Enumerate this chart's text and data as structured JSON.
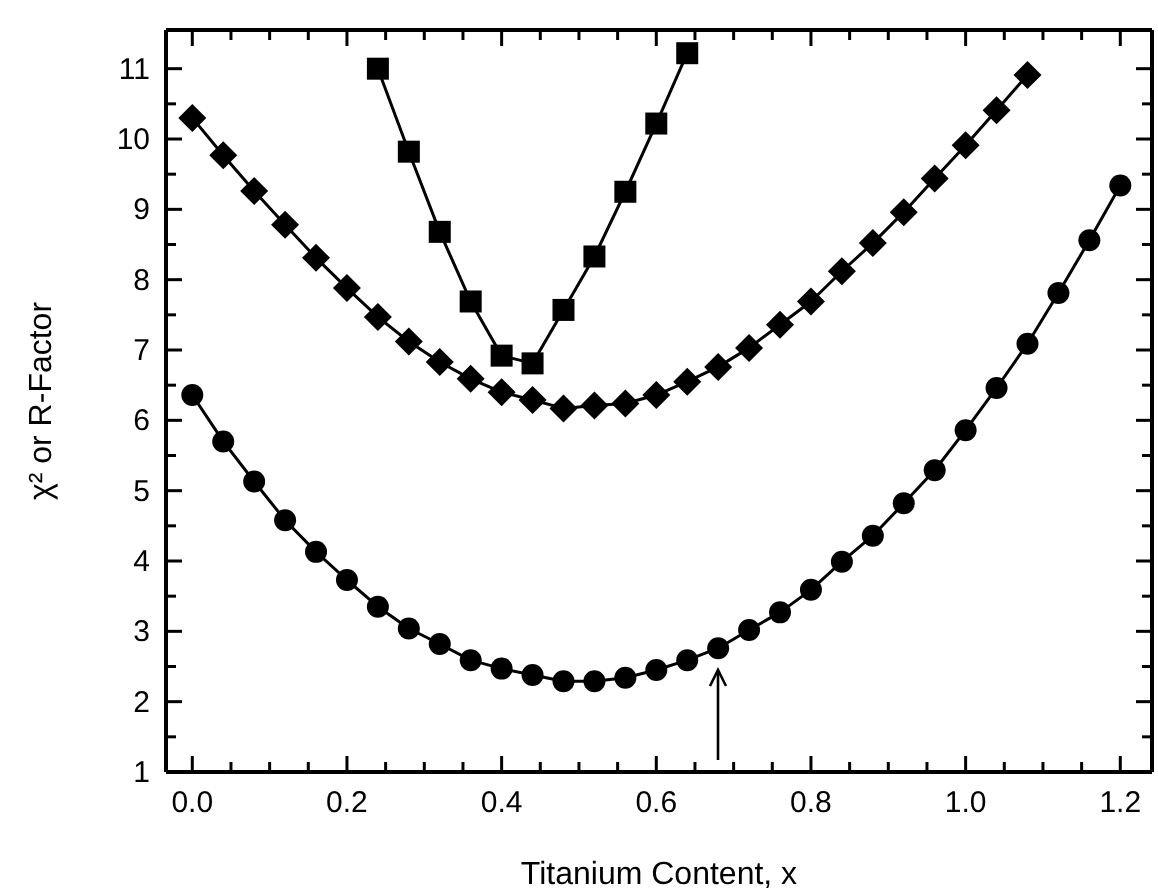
{
  "chart_data": {
    "type": "line",
    "xlabel": "Titanium Content, x",
    "ylabel": "χ² or R-Factor",
    "xlim": [
      -0.034,
      1.241
    ],
    "ylim": [
      1,
      11.55
    ],
    "xticks": [
      {
        "value": 0,
        "label": "0.0"
      },
      {
        "value": 0.05,
        "label": null
      },
      {
        "value": 0.1,
        "label": null
      },
      {
        "value": 0.15,
        "label": null
      },
      {
        "value": 0.2,
        "label": "0.2"
      },
      {
        "value": 0.25,
        "label": null
      },
      {
        "value": 0.3,
        "label": null
      },
      {
        "value": 0.35,
        "label": null
      },
      {
        "value": 0.4,
        "label": "0.4"
      },
      {
        "value": 0.45,
        "label": null
      },
      {
        "value": 0.5,
        "label": null
      },
      {
        "value": 0.55,
        "label": null
      },
      {
        "value": 0.6,
        "label": "0.6"
      },
      {
        "value": 0.65,
        "label": null
      },
      {
        "value": 0.7,
        "label": null
      },
      {
        "value": 0.75,
        "label": null
      },
      {
        "value": 0.8,
        "label": "0.8"
      },
      {
        "value": 0.85,
        "label": null
      },
      {
        "value": 0.9,
        "label": null
      },
      {
        "value": 0.95,
        "label": null
      },
      {
        "value": 1.0,
        "label": "1.0"
      },
      {
        "value": 1.05,
        "label": null
      },
      {
        "value": 1.1,
        "label": null
      },
      {
        "value": 1.15,
        "label": null
      },
      {
        "value": 1.2,
        "label": "1.2"
      }
    ],
    "yticks": [
      1,
      {
        "value": 1.5,
        "label": null
      },
      2,
      {
        "value": 2.5,
        "label": null
      },
      3,
      {
        "value": 3.5,
        "label": null
      },
      4,
      {
        "value": 4.5,
        "label": null
      },
      5,
      {
        "value": 5.5,
        "label": null
      },
      6,
      {
        "value": 6.5,
        "label": null
      },
      7,
      {
        "value": 7.5,
        "label": null
      },
      8,
      {
        "value": 8.5,
        "label": null
      },
      9,
      {
        "value": 9.5,
        "label": null
      },
      10,
      {
        "value": 10.5,
        "label": null
      },
      11
    ],
    "line_style": "solid",
    "series": [
      {
        "color": "#000000",
        "marker": "square",
        "x": [
          0.24,
          0.28,
          0.32,
          0.36,
          0.4,
          0.44,
          0.48,
          0.52,
          0.56,
          0.6,
          0.64
        ],
        "values": [
          11.0,
          9.82,
          8.68,
          7.69,
          6.92,
          6.81,
          7.57,
          8.33,
          9.25,
          10.22,
          11.22
        ]
      },
      {
        "color": "#000000",
        "marker": "diamond",
        "x": [
          0,
          0.04,
          0.08,
          0.12,
          0.16,
          0.2,
          0.24,
          0.28,
          0.32,
          0.36,
          0.4,
          0.44,
          0.48,
          0.52,
          0.56,
          0.6,
          0.64,
          0.68,
          0.72,
          0.76,
          0.8,
          0.84,
          0.88,
          0.92,
          0.96,
          1.0,
          1.04,
          1.08
        ],
        "values": [
          10.3,
          9.77,
          9.26,
          8.78,
          8.31,
          7.88,
          7.47,
          7.12,
          6.83,
          6.59,
          6.4,
          6.29,
          6.17,
          6.21,
          6.24,
          6.36,
          6.55,
          6.76,
          7.03,
          7.36,
          7.69,
          8.12,
          8.52,
          8.96,
          9.44,
          9.91,
          10.41,
          10.91
        ]
      },
      {
        "color": "#000000",
        "marker": "circle",
        "x": [
          0,
          0.04,
          0.08,
          0.12,
          0.16,
          0.2,
          0.24,
          0.28,
          0.32,
          0.36,
          0.4,
          0.44,
          0.48,
          0.52,
          0.56,
          0.6,
          0.64,
          0.68,
          0.72,
          0.76,
          0.8,
          0.84,
          0.88,
          0.92,
          0.96,
          1.0,
          1.04,
          1.08,
          1.12,
          1.16,
          1.2
        ],
        "values": [
          6.36,
          5.7,
          5.13,
          4.58,
          4.13,
          3.73,
          3.35,
          3.04,
          2.82,
          2.59,
          2.47,
          2.38,
          2.29,
          2.29,
          2.34,
          2.45,
          2.59,
          2.76,
          3.02,
          3.27,
          3.59,
          3.99,
          4.36,
          4.82,
          5.29,
          5.86,
          6.46,
          7.09,
          7.81,
          8.56,
          9.34
        ]
      }
    ]
  }
}
